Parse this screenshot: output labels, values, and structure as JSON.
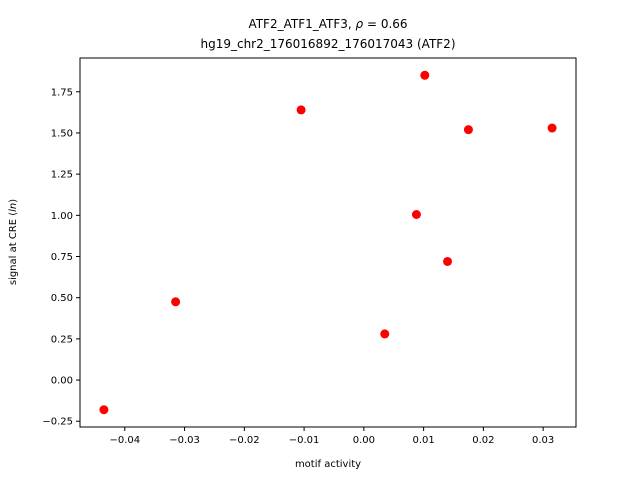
{
  "chart_data": {
    "type": "scatter",
    "title_line1_prefix": "ATF2_ATF1_ATF3, ",
    "title_rho_symbol": "ρ",
    "title_rho_rest": " = 0.66",
    "title_line2": "hg19_chr2_176016892_176017043 (ATF2)",
    "xlabel": "motif activity",
    "ylabel_prefix": "signal at CRE (",
    "ylabel_italic": "ln",
    "ylabel_suffix": ")",
    "xlim": [
      -0.0475,
      0.0355
    ],
    "ylim": [
      -0.285,
      1.955
    ],
    "xticks": [
      {
        "value": -0.04,
        "label": "−0.04"
      },
      {
        "value": -0.03,
        "label": "−0.03"
      },
      {
        "value": -0.02,
        "label": "−0.02"
      },
      {
        "value": -0.01,
        "label": "−0.01"
      },
      {
        "value": 0.0,
        "label": "0.00"
      },
      {
        "value": 0.01,
        "label": "0.01"
      },
      {
        "value": 0.02,
        "label": "0.02"
      },
      {
        "value": 0.03,
        "label": "0.03"
      }
    ],
    "yticks": [
      {
        "value": -0.25,
        "label": "−0.25"
      },
      {
        "value": 0.0,
        "label": "0.00"
      },
      {
        "value": 0.25,
        "label": "0.25"
      },
      {
        "value": 0.5,
        "label": "0.50"
      },
      {
        "value": 0.75,
        "label": "0.75"
      },
      {
        "value": 1.0,
        "label": "1.00"
      },
      {
        "value": 1.25,
        "label": "1.25"
      },
      {
        "value": 1.5,
        "label": "1.50"
      },
      {
        "value": 1.75,
        "label": "1.75"
      }
    ],
    "points": [
      {
        "x": -0.0435,
        "y": -0.18
      },
      {
        "x": -0.0315,
        "y": 0.475
      },
      {
        "x": -0.0105,
        "y": 1.64
      },
      {
        "x": 0.0035,
        "y": 0.28
      },
      {
        "x": 0.0088,
        "y": 1.005
      },
      {
        "x": 0.0102,
        "y": 1.85
      },
      {
        "x": 0.014,
        "y": 0.72
      },
      {
        "x": 0.0175,
        "y": 1.52
      },
      {
        "x": 0.0315,
        "y": 1.53
      }
    ],
    "marker_color": "#ff0000",
    "grid": false,
    "legend": "none"
  }
}
